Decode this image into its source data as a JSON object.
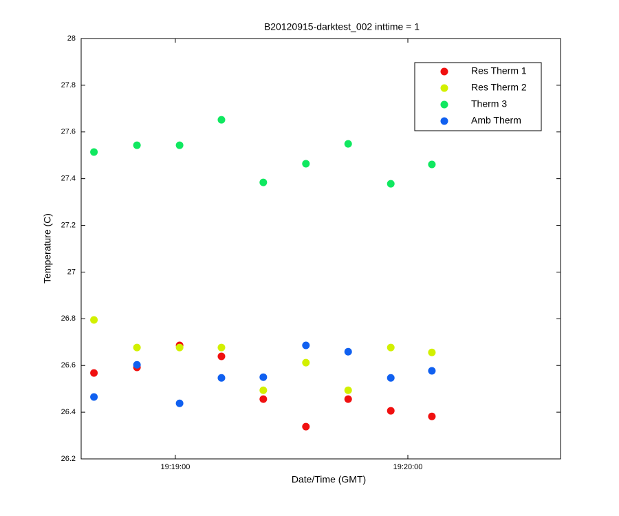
{
  "chart_data": {
    "type": "scatter",
    "title": "B20120915-darktest_002 inttime = 1",
    "xlabel": "Date/Time (GMT)",
    "ylabel": "Temperature (C)",
    "x": [
      69519.0,
      69530.1,
      69541.1,
      69551.9,
      69562.7,
      69573.7,
      69584.6,
      69595.6,
      69606.2
    ],
    "series": [
      {
        "name": "Res Therm 1",
        "color": "#f01010",
        "values": [
          26.568,
          26.592,
          26.686,
          26.639,
          26.456,
          26.338,
          26.456,
          26.406,
          26.382
        ]
      },
      {
        "name": "Res Therm 2",
        "color": "#d2f000",
        "values": [
          26.795,
          26.677,
          26.677,
          26.677,
          26.494,
          26.612,
          26.494,
          26.677,
          26.656
        ]
      },
      {
        "name": "Therm 3",
        "color": "#10e860",
        "values": [
          27.514,
          27.543,
          27.543,
          27.652,
          27.384,
          27.464,
          27.549,
          27.378,
          27.461
        ]
      },
      {
        "name": "Amb Therm",
        "color": "#1060f0",
        "values": [
          26.465,
          26.603,
          26.438,
          26.547,
          26.55,
          26.686,
          26.659,
          26.547,
          26.577
        ]
      }
    ],
    "xlim": [
      69515.7,
      69639.4
    ],
    "xticks": [
      {
        "value": 69540,
        "label": "19:19:00"
      },
      {
        "value": 69600,
        "label": "19:20:00"
      }
    ],
    "ylim": [
      26.2,
      28
    ],
    "yticks": [
      26.2,
      26.4,
      26.6,
      26.8,
      27,
      27.2,
      27.4,
      27.6,
      27.8,
      28
    ],
    "grid": false,
    "legend": "upper-right"
  }
}
